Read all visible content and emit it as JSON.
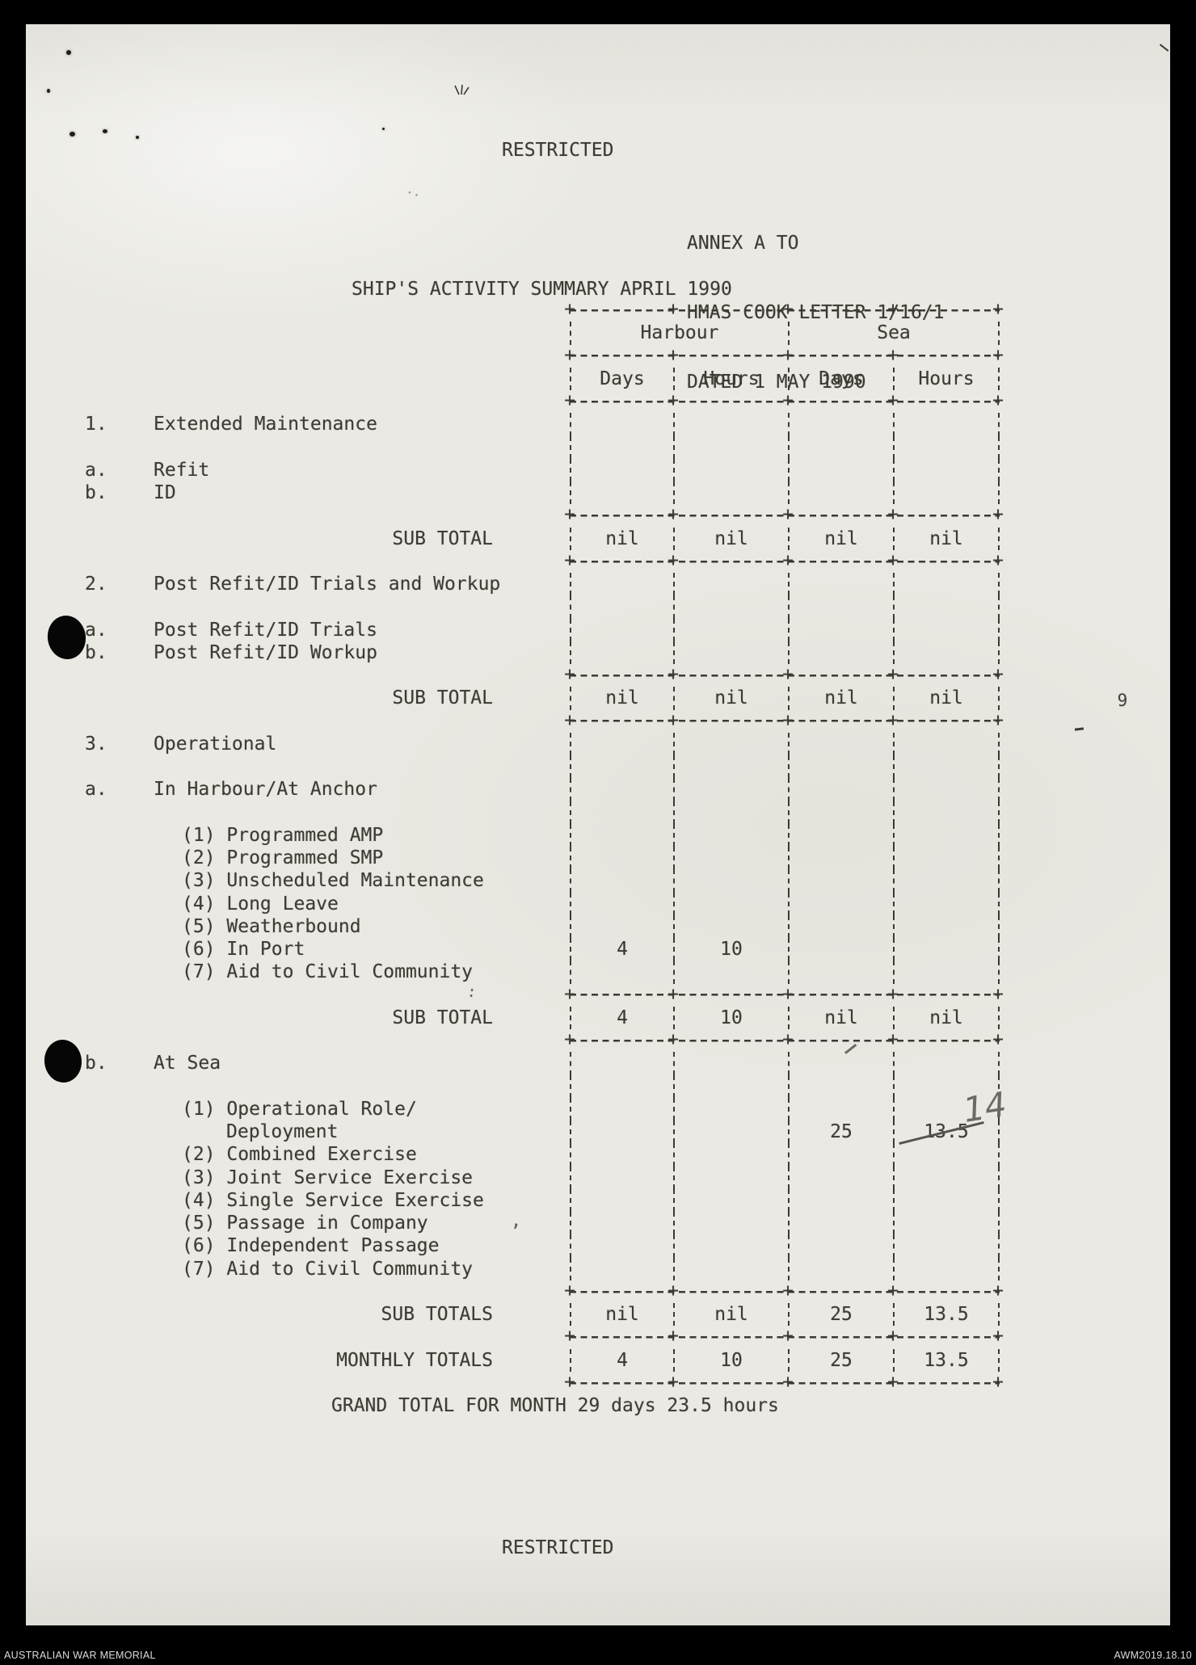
{
  "document": {
    "classification_top": "RESTRICTED",
    "classification_bottom": "RESTRICTED",
    "annex_lines": [
      "ANNEX A TO",
      "HMAS COOK LETTER 1/16/1",
      "DATED 1 MAY 1990"
    ],
    "title": "SHIP'S ACTIVITY SUMMARY APRIL 1990",
    "grand_total": "GRAND TOTAL FOR MONTH 29 days 23.5 hours"
  },
  "table": {
    "group_headers": [
      "Harbour",
      "Sea"
    ],
    "column_headers": [
      "Days",
      "Hours",
      "Days",
      "Hours"
    ],
    "rows": [
      {
        "t": "hr"
      },
      {
        "t": "gh"
      },
      {
        "t": "hr"
      },
      {
        "t": "ch"
      },
      {
        "t": "hr"
      },
      {
        "t": "item",
        "num": "1.",
        "label": "Extended Maintenance",
        "cells": [
          "",
          "",
          "",
          ""
        ]
      },
      {
        "t": "item",
        "num": "",
        "label": "",
        "cells": [
          "",
          "",
          "",
          ""
        ]
      },
      {
        "t": "item",
        "num": "a.",
        "label": "Refit",
        "cells": [
          "",
          "",
          "",
          ""
        ]
      },
      {
        "t": "item",
        "num": "b.",
        "label": "ID",
        "cells": [
          "",
          "",
          "",
          ""
        ]
      },
      {
        "t": "hr"
      },
      {
        "t": "total",
        "label": "SUB TOTAL",
        "cells": [
          "nil",
          "nil",
          "nil",
          "nil"
        ]
      },
      {
        "t": "hr"
      },
      {
        "t": "item",
        "num": "2.",
        "label": "Post Refit/ID Trials and Workup",
        "cells": [
          "",
          "",
          "",
          ""
        ]
      },
      {
        "t": "item",
        "num": "",
        "label": "",
        "cells": [
          "",
          "",
          "",
          ""
        ]
      },
      {
        "t": "item",
        "num": "a.",
        "label": "Post Refit/ID Trials",
        "cells": [
          "",
          "",
          "",
          ""
        ]
      },
      {
        "t": "item",
        "num": "b.",
        "label": "Post Refit/ID Workup",
        "cells": [
          "",
          "",
          "",
          ""
        ]
      },
      {
        "t": "hr"
      },
      {
        "t": "total",
        "label": "SUB TOTAL",
        "cells": [
          "nil",
          "nil",
          "nil",
          "nil"
        ]
      },
      {
        "t": "hr"
      },
      {
        "t": "item",
        "num": "3.",
        "label": "Operational",
        "cells": [
          "",
          "",
          "",
          ""
        ]
      },
      {
        "t": "item",
        "num": "",
        "label": "",
        "cells": [
          "",
          "",
          "",
          ""
        ]
      },
      {
        "t": "item",
        "num": "a.",
        "label": "In Harbour/At Anchor",
        "cells": [
          "",
          "",
          "",
          ""
        ]
      },
      {
        "t": "item",
        "num": "",
        "label": "",
        "cells": [
          "",
          "",
          "",
          ""
        ]
      },
      {
        "t": "sub",
        "label": "(1) Programmed AMP",
        "cells": [
          "",
          "",
          "",
          ""
        ]
      },
      {
        "t": "sub",
        "label": "(2) Programmed SMP",
        "cells": [
          "",
          "",
          "",
          ""
        ]
      },
      {
        "t": "sub",
        "label": "(3) Unscheduled Maintenance",
        "cells": [
          "",
          "",
          "",
          ""
        ]
      },
      {
        "t": "sub",
        "label": "(4) Long Leave",
        "cells": [
          "",
          "",
          "",
          ""
        ]
      },
      {
        "t": "sub",
        "label": "(5) Weatherbound",
        "cells": [
          "",
          "",
          "",
          ""
        ]
      },
      {
        "t": "sub",
        "label": "(6) In Port",
        "cells": [
          "4",
          "10",
          "",
          ""
        ]
      },
      {
        "t": "sub",
        "label": "(7) Aid to Civil Community",
        "cells": [
          "",
          "",
          "",
          ""
        ]
      },
      {
        "t": "hr"
      },
      {
        "t": "total",
        "label": "SUB TOTAL",
        "cells": [
          "4",
          "10",
          "nil",
          "nil"
        ]
      },
      {
        "t": "hr"
      },
      {
        "t": "item",
        "num": "b.",
        "label": "At Sea",
        "cells": [
          "",
          "",
          "",
          ""
        ]
      },
      {
        "t": "item",
        "num": "",
        "label": "",
        "cells": [
          "",
          "",
          "",
          ""
        ]
      },
      {
        "t": "sub",
        "label": "(1) Operational Role/",
        "cells": [
          "",
          "",
          "",
          ""
        ]
      },
      {
        "t": "cont",
        "label": "Deployment",
        "cells": [
          "",
          "",
          "25",
          "13.5"
        ],
        "strike_cell": 3
      },
      {
        "t": "sub",
        "label": "(2) Combined Exercise",
        "cells": [
          "",
          "",
          "",
          ""
        ]
      },
      {
        "t": "sub",
        "label": "(3) Joint Service Exercise",
        "cells": [
          "",
          "",
          "",
          ""
        ]
      },
      {
        "t": "sub",
        "label": "(4) Single Service Exercise",
        "cells": [
          "",
          "",
          "",
          ""
        ]
      },
      {
        "t": "sub",
        "label": "(5) Passage in Company",
        "cells": [
          "",
          "",
          "",
          ""
        ]
      },
      {
        "t": "sub",
        "label": "(6) Independent Passage",
        "cells": [
          "",
          "",
          "",
          ""
        ]
      },
      {
        "t": "sub",
        "label": "(7) Aid to Civil Community",
        "cells": [
          "",
          "",
          "",
          ""
        ]
      },
      {
        "t": "hr"
      },
      {
        "t": "total",
        "label": "SUB TOTALS",
        "cells": [
          "nil",
          "nil",
          "25",
          "13.5"
        ]
      },
      {
        "t": "hr"
      },
      {
        "t": "total",
        "label": "MONTHLY TOTALS",
        "cells": [
          "4",
          "10",
          "25",
          "13.5"
        ]
      },
      {
        "t": "hr"
      }
    ]
  },
  "annotations": {
    "handwritten_value": "14",
    "struck_value": "13.5",
    "margin_pencil_mark": "9"
  },
  "footer": {
    "left": "AUSTRALIAN WAR MEMORIAL",
    "right": "AWM2019.18.10"
  },
  "colors": {
    "ink": "#3b3a33",
    "paper": "#eae9e3",
    "pencil": "#6b6a64",
    "pencil_dark": "#55544e",
    "background": "#000000"
  }
}
